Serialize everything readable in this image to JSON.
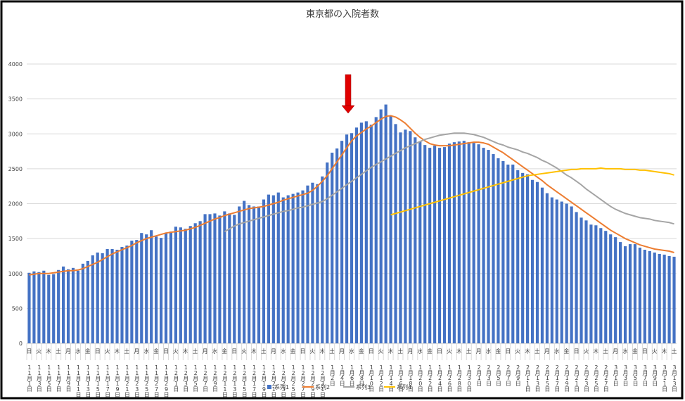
{
  "chart_data": {
    "type": "bar",
    "title": "東京都の入院者数",
    "categories": [
      "11月1日",
      null,
      "11月3日",
      null,
      "11月5日",
      null,
      "11月7日",
      null,
      "11月9日",
      null,
      "11月11日",
      null,
      "11月13日",
      null,
      "11月15日",
      null,
      "11月17日",
      null,
      "11月19日",
      null,
      "11月21日",
      null,
      "11月23日",
      null,
      "11月25日",
      null,
      "11月27日",
      null,
      "11月29日",
      null,
      "12月1日",
      null,
      "12月3日",
      null,
      "12月5日",
      null,
      "12月7日",
      null,
      "12月9日",
      null,
      "12月11日",
      null,
      "12月13日",
      null,
      "12月15日",
      null,
      "12月17日",
      null,
      "12月19日",
      null,
      "12月21日",
      null,
      "12月23日",
      null,
      "12月25日",
      null,
      "12月27日",
      null,
      "12月29日",
      null,
      "12月31日",
      null,
      "1月2日",
      null,
      "1月4日",
      null,
      "1月6日",
      null,
      "1月8日",
      null,
      "1月10日",
      null,
      "1月12日",
      null,
      "1月14日",
      null,
      "1月16日",
      null,
      "1月18日",
      null,
      "1月20日",
      null,
      "1月22日",
      null,
      "1月24日",
      null,
      "1月26日",
      null,
      "1月28日",
      null,
      "1月30日",
      null,
      "2月1日",
      null,
      "2月3日",
      null,
      "2月5日",
      null,
      "2月7日",
      null,
      "2月9日",
      null,
      "2月11日",
      null,
      "2月13日",
      null,
      "2月15日",
      null,
      "2月17日",
      null,
      "2月19日",
      null,
      "2月21日",
      null,
      "2月23日",
      null,
      "2月25日",
      null,
      "2月27日",
      null,
      "3月1日",
      null,
      "3月3日",
      null,
      "3月5日",
      null,
      "3月7日",
      null,
      "3月9日",
      null,
      "3月11日",
      null,
      "3月13日"
    ],
    "weekdays": [
      "日",
      null,
      "火",
      null,
      "木",
      null,
      "土",
      null,
      "月",
      null,
      "水",
      null,
      "金",
      null,
      "日",
      null,
      "火",
      null,
      "木",
      null,
      "土",
      null,
      "月",
      null,
      "水",
      null,
      "金",
      null,
      "日",
      null,
      "火",
      null,
      "木",
      null,
      "土",
      null,
      "月",
      null,
      "水",
      null,
      "金",
      null,
      "日",
      null,
      "火",
      null,
      "木",
      null,
      "土",
      null,
      "月",
      null,
      "水",
      null,
      "金",
      null,
      "日",
      null,
      "火",
      null,
      "木",
      null,
      "土",
      null,
      "月",
      null,
      "水",
      null,
      "金",
      null,
      "日",
      null,
      "火",
      null,
      "木",
      null,
      "土",
      null,
      "月",
      null,
      "水",
      null,
      "金",
      null,
      "日",
      null,
      "火",
      null,
      "木",
      null,
      "土",
      null,
      "月",
      null,
      "水",
      null,
      "金",
      null,
      "日",
      null,
      "火",
      null,
      "木",
      null,
      "土",
      null,
      "月",
      null,
      "水",
      null,
      "金",
      null,
      "日",
      null,
      "火",
      null,
      "木",
      null,
      "土",
      null,
      "月",
      null,
      "水",
      null,
      "金",
      null,
      "日",
      null,
      "火",
      null,
      "木",
      null,
      "土"
    ],
    "series": [
      {
        "name": "系列1",
        "type": "bar",
        "color": "#4472c4",
        "values": [
          1010,
          1030,
          1020,
          1040,
          980,
          990,
          1050,
          1100,
          1060,
          1080,
          1040,
          1140,
          1180,
          1260,
          1300,
          1290,
          1350,
          1350,
          1340,
          1380,
          1400,
          1470,
          1480,
          1580,
          1560,
          1620,
          1530,
          1510,
          1580,
          1600,
          1670,
          1660,
          1640,
          1680,
          1720,
          1750,
          1850,
          1850,
          1860,
          1830,
          1890,
          1860,
          1840,
          1960,
          2040,
          1980,
          1960,
          1960,
          2060,
          2130,
          2120,
          2160,
          2090,
          2120,
          2140,
          2160,
          2190,
          2260,
          2300,
          2280,
          2390,
          2590,
          2730,
          2790,
          2900,
          2990,
          3010,
          3090,
          3160,
          3180,
          3130,
          3240,
          3350,
          3420,
          3250,
          3140,
          3020,
          3060,
          3040,
          2950,
          2890,
          2840,
          2800,
          2830,
          2800,
          2810,
          2860,
          2880,
          2890,
          2900,
          2880,
          2870,
          2850,
          2800,
          2770,
          2710,
          2650,
          2610,
          2560,
          2560,
          2480,
          2440,
          2420,
          2340,
          2310,
          2230,
          2150,
          2090,
          2060,
          2030,
          2000,
          1960,
          1880,
          1800,
          1760,
          1700,
          1690,
          1650,
          1610,
          1560,
          1520,
          1450,
          1390,
          1420,
          1420,
          1370,
          1340,
          1320,
          1300,
          1280,
          1270,
          1250,
          1240
        ]
      },
      {
        "name": "系列2",
        "type": "line",
        "color": "#ed7d31",
        "values": [
          980,
          990,
          1000,
          1000,
          1000,
          1010,
          1020,
          1030,
          1040,
          1040,
          1050,
          1070,
          1100,
          1130,
          1160,
          1200,
          1240,
          1280,
          1310,
          1340,
          1370,
          1400,
          1440,
          1470,
          1500,
          1520,
          1540,
          1560,
          1580,
          1590,
          1600,
          1610,
          1620,
          1640,
          1660,
          1690,
          1720,
          1750,
          1780,
          1800,
          1830,
          1850,
          1870,
          1890,
          1910,
          1930,
          1940,
          1950,
          1960,
          1980,
          2000,
          2020,
          2050,
          2070,
          2090,
          2110,
          2130,
          2150,
          2190,
          2250,
          2320,
          2400,
          2500,
          2600,
          2700,
          2800,
          2900,
          2970,
          3020,
          3070,
          3110,
          3160,
          3210,
          3250,
          3260,
          3240,
          3200,
          3150,
          3080,
          3010,
          2950,
          2900,
          2860,
          2840,
          2830,
          2830,
          2830,
          2840,
          2850,
          2860,
          2870,
          2880,
          2880,
          2870,
          2850,
          2810,
          2770,
          2730,
          2680,
          2630,
          2580,
          2530,
          2480,
          2430,
          2380,
          2330,
          2270,
          2220,
          2170,
          2120,
          2070,
          2020,
          1970,
          1920,
          1870,
          1820,
          1770,
          1720,
          1670,
          1620,
          1580,
          1540,
          1500,
          1470,
          1440,
          1410,
          1390,
          1370,
          1350,
          1340,
          1330,
          1320,
          1300
        ]
      },
      {
        "name": "系列3",
        "type": "line",
        "color": "#a5a5a5",
        "values": [
          null,
          null,
          null,
          null,
          null,
          null,
          null,
          null,
          null,
          null,
          null,
          null,
          null,
          null,
          null,
          null,
          null,
          null,
          null,
          null,
          null,
          null,
          null,
          null,
          null,
          null,
          null,
          null,
          null,
          null,
          null,
          null,
          null,
          null,
          null,
          null,
          null,
          null,
          null,
          null,
          1600,
          1640,
          1680,
          1710,
          1730,
          1750,
          1770,
          1790,
          1810,
          1830,
          1850,
          1870,
          1890,
          1900,
          1920,
          1940,
          1950,
          1970,
          1990,
          2010,
          2030,
          2070,
          2120,
          2170,
          2220,
          2270,
          2320,
          2370,
          2420,
          2470,
          2520,
          2560,
          2600,
          2640,
          2680,
          2720,
          2760,
          2800,
          2830,
          2860,
          2890,
          2920,
          2940,
          2960,
          2980,
          2990,
          3000,
          3010,
          3010,
          3010,
          3000,
          2990,
          2970,
          2950,
          2920,
          2890,
          2860,
          2840,
          2810,
          2790,
          2770,
          2740,
          2720,
          2690,
          2660,
          2620,
          2590,
          2550,
          2510,
          2460,
          2410,
          2370,
          2320,
          2270,
          2210,
          2160,
          2110,
          2060,
          2010,
          1960,
          1920,
          1890,
          1860,
          1840,
          1820,
          1800,
          1790,
          1780,
          1760,
          1750,
          1740,
          1730,
          1710
        ]
      },
      {
        "name": "系列4",
        "type": "line",
        "color": "#ffc000",
        "values": [
          null,
          null,
          null,
          null,
          null,
          null,
          null,
          null,
          null,
          null,
          null,
          null,
          null,
          null,
          null,
          null,
          null,
          null,
          null,
          null,
          null,
          null,
          null,
          null,
          null,
          null,
          null,
          null,
          null,
          null,
          null,
          null,
          null,
          null,
          null,
          null,
          null,
          null,
          null,
          null,
          null,
          null,
          null,
          null,
          null,
          null,
          null,
          null,
          null,
          null,
          null,
          null,
          null,
          null,
          null,
          null,
          null,
          null,
          null,
          null,
          null,
          null,
          null,
          null,
          null,
          null,
          null,
          null,
          null,
          null,
          null,
          null,
          null,
          null,
          1840,
          1860,
          1880,
          1900,
          1920,
          1940,
          1960,
          1980,
          2000,
          2020,
          2040,
          2060,
          2080,
          2100,
          2120,
          2140,
          2160,
          2180,
          2200,
          2220,
          2240,
          2260,
          2280,
          2300,
          2320,
          2340,
          2360,
          2380,
          2400,
          2410,
          2420,
          2430,
          2440,
          2450,
          2460,
          2470,
          2480,
          2490,
          2490,
          2500,
          2500,
          2500,
          2500,
          2510,
          2500,
          2500,
          2500,
          2500,
          2490,
          2490,
          2490,
          2480,
          2480,
          2470,
          2460,
          2450,
          2440,
          2430,
          2410
        ]
      }
    ],
    "ylim": [
      0,
      4000
    ],
    "yticks": [
      0,
      500,
      1000,
      1500,
      2000,
      2500,
      3000,
      3500,
      4000
    ],
    "grid": true
  }
}
